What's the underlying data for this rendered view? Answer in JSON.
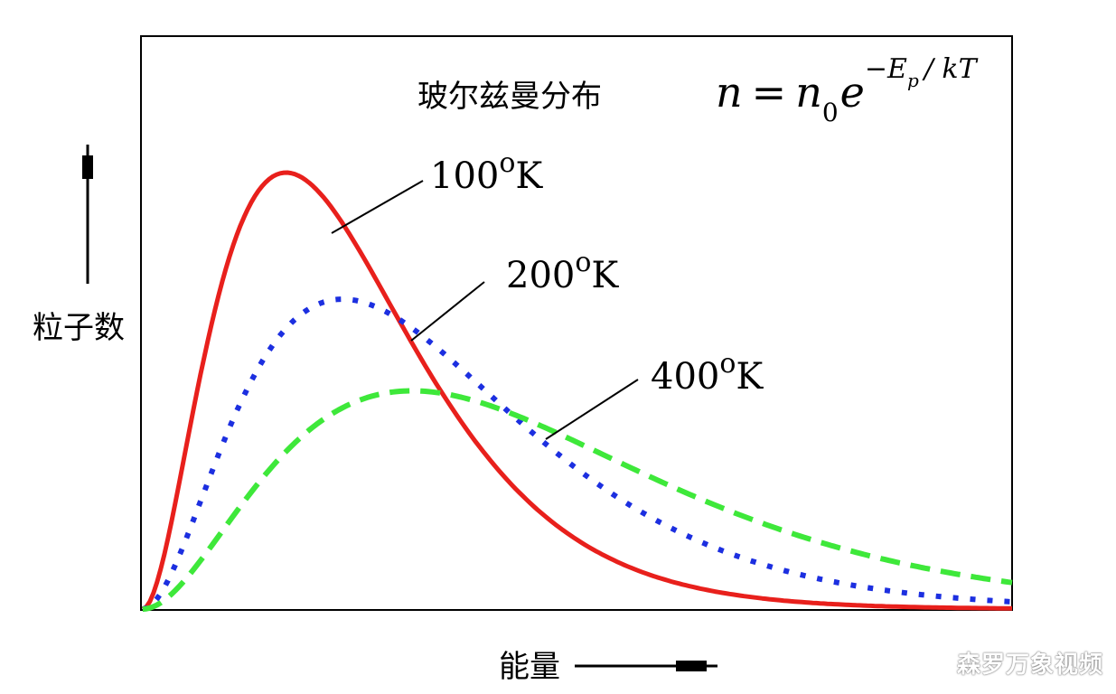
{
  "chart_data": {
    "type": "line",
    "title": "玻尔兹曼分布",
    "formula": {
      "lhs": "n",
      "equals": "=",
      "n0": "n",
      "n0_sub": "0",
      "e": "e",
      "exp_minus": "−",
      "exp_E": "E",
      "exp_sub": "p",
      "exp_rest": "/ kT"
    },
    "xlabel": "能量",
    "ylabel": "粒子数",
    "xlim": [
      0,
      10
    ],
    "ylim": [
      0,
      1
    ],
    "grid": false,
    "legend": "none",
    "series": [
      {
        "name": "100°K",
        "label_num": "100",
        "label_deg": "o",
        "label_unit": "K",
        "color": "#e8201c",
        "style": "solid",
        "peak_x": 1.65,
        "peak_y": 1.0
      },
      {
        "name": "200°K",
        "label_num": "200",
        "label_deg": "o",
        "label_unit": "K",
        "color": "#1c2fe0",
        "style": "dotted",
        "peak_x": 2.3,
        "peak_y": 0.71
      },
      {
        "name": "400°K",
        "label_num": "400",
        "label_deg": "o",
        "label_unit": "K",
        "color": "#3ee83a",
        "style": "dashed",
        "peak_x": 3.1,
        "peak_y": 0.5
      }
    ]
  },
  "watermark": "森罗万象视频"
}
